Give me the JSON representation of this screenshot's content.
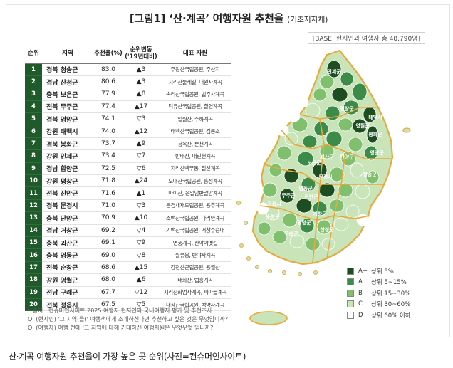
{
  "title": "[그림1] ‘산·계곡’ 여행자원 추천율",
  "title_sub": "(기초지자체)",
  "base_note": "[BASE: 현지인과 여행자 총 48,790명]",
  "table_headers": [
    "순위",
    "지역",
    "추천율(%)",
    "순위변동 ('19년대비)",
    "대표 자원"
  ],
  "chart_data": {
    "type": "table",
    "title": "‘산·계곡’ 여행자원 추천율",
    "columns": [
      "순위",
      "지역",
      "추천율(%)",
      "순위변동 ('19년대비)",
      "대표 자원"
    ],
    "rows": [
      {
        "rank": "1",
        "region": "경북 청송군",
        "rate": "83.0",
        "change": "▲3",
        "resource": "주왕산국립공원, 주산지"
      },
      {
        "rank": "2",
        "region": "경남 산청군",
        "rate": "80.6",
        "change": "▲3",
        "resource": "지리산둘레길, 대원사계곡"
      },
      {
        "rank": "3",
        "region": "충북 보은군",
        "rate": "77.9",
        "change": "▲8",
        "resource": "속리산국립공원, 법주사계곡"
      },
      {
        "rank": "4",
        "region": "전북 무주군",
        "rate": "77.4",
        "change": "▲17",
        "resource": "덕유산국립공원, 칠연계곡"
      },
      {
        "rank": "5",
        "region": "경북 영양군",
        "rate": "74.1",
        "change": "▽3",
        "resource": "일월산, 수하계곡"
      },
      {
        "rank": "6",
        "region": "강원 태백시",
        "rate": "74.0",
        "change": "▲12",
        "resource": "태백산국립공원, 검룡소"
      },
      {
        "rank": "7",
        "region": "경북 봉화군",
        "rate": "73.7",
        "change": "▲9",
        "resource": "청옥산, 분천계곡"
      },
      {
        "rank": "8",
        "region": "강원 인제군",
        "rate": "73.4",
        "change": "▽7",
        "resource": "방태산, 내린천계곡"
      },
      {
        "rank": "9",
        "region": "경남 함양군",
        "rate": "72.5",
        "change": "▽6",
        "resource": "지리산백무동, 칠선계곡"
      },
      {
        "rank": "10",
        "region": "강원 평창군",
        "rate": "71.8",
        "change": "▲24",
        "resource": "오대산국립공원, 흥정계곡"
      },
      {
        "rank": "11",
        "region": "전북 진안군",
        "rate": "71.6",
        "change": "▲1",
        "resource": "마이산, 운일암반일암계곡"
      },
      {
        "rank": "12",
        "region": "경북 문경시",
        "rate": "71.0",
        "change": "▽3",
        "resource": "문경새재도립공원, 용추계곡"
      },
      {
        "rank": "13",
        "region": "충북 단양군",
        "rate": "70.9",
        "change": "▲10",
        "resource": "소백산국립공원, 다리안계곡"
      },
      {
        "rank": "14",
        "region": "경남 거창군",
        "rate": "69.2",
        "change": "▽4",
        "resource": "기백산국립공원, 거창수승대"
      },
      {
        "rank": "15",
        "region": "충북 괴산군",
        "rate": "69.1",
        "change": "▽9",
        "resource": "연풍계곡, 산막이옛길"
      },
      {
        "rank": "16",
        "region": "충북 영동군",
        "rate": "69.0",
        "change": "▽8",
        "resource": "월류봉, 반야사계곡"
      },
      {
        "rank": "17",
        "region": "전북 순창군",
        "rate": "68.6",
        "change": "▲15",
        "resource": "강천산군립공원, 용궐산"
      },
      {
        "rank": "18",
        "region": "강원 영월군",
        "rate": "68.0",
        "change": "▲6",
        "resource": "태화산, 법흥계곡"
      },
      {
        "rank": "19",
        "region": "전남 구례군",
        "rate": "67.7",
        "change": "▽12",
        "resource": "지리산화엄사계곡, 피아골계곡"
      },
      {
        "rank": "20",
        "region": "전북 정읍시",
        "rate": "67.5",
        "change": "▽5",
        "resource": "내장산국립공원, 백양사계곡"
      }
    ],
    "legend": [
      {
        "grade": "A+",
        "label": "상위 5%",
        "color": "#1e4d22"
      },
      {
        "grade": "A",
        "label": "상위 5~15%",
        "color": "#3d8b48"
      },
      {
        "grade": "B",
        "label": "상위 15~30%",
        "color": "#7fbf6e"
      },
      {
        "grade": "C",
        "label": "상위 30~60%",
        "color": "#c8e4b8"
      },
      {
        "grade": "D",
        "label": "상위 60% 이하",
        "color": "#ffffff"
      }
    ],
    "map_labels": [
      "인제군",
      "평창군",
      "영월군",
      "태백시",
      "봉화군",
      "영양군",
      "청송군",
      "단양군",
      "괴산군",
      "문경시",
      "보은군",
      "영동군",
      "무주군",
      "진안군",
      "거창군",
      "함양군",
      "산청군",
      "순창군",
      "정읍시",
      "구례군"
    ]
  },
  "notes": [
    "* 출처 : 컨슈머인사이트 2025 여행자·현지인의 국내여행지 평가 및 추천조사",
    "Q. (현지인) '그 지역(을)' 여행객에게 소개하신다면 추천하고 싶은 것은 무엇입니까?",
    "Q. (여행자) 여행 전에 '그 지역에 대해 기대하신 여행자원은 무엇무엇 입니까?"
  ],
  "caption": "산·계곡 여행자원 추천율이 가장 높은 곳 순위(사진=컨슈머인사이트)",
  "colors": {
    "rank_bg": "#1f5a2b",
    "province_border": "#e8a93a",
    "sea": "#ffffff"
  }
}
